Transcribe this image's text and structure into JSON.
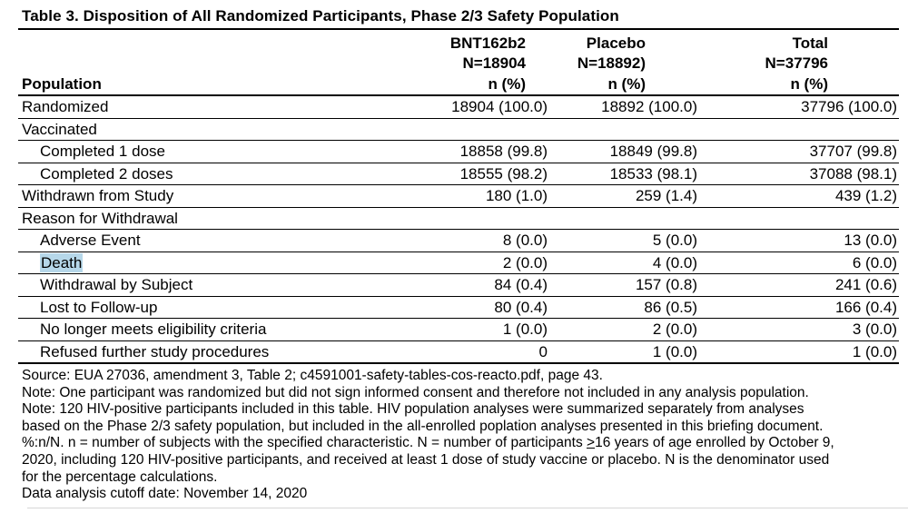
{
  "title": "Table 3. Disposition of All Randomized Participants, Phase 2/3 Safety Population",
  "highlight_color": "#b6d7e9",
  "table": {
    "row_header": "Population",
    "columns": [
      {
        "name": "BNT162b2",
        "n": "N=18904",
        "stat": "n (%)"
      },
      {
        "name": "Placebo",
        "n": "N=18892)",
        "stat": "n (%)"
      },
      {
        "name": "Total",
        "n": "N=37796",
        "stat": "n (%)"
      }
    ],
    "rows": [
      {
        "label": "Randomized",
        "indent": false,
        "highlighted": false,
        "values": [
          "18904 (100.0)",
          "18892 (100.0)",
          "37796 (100.0)"
        ]
      },
      {
        "label": "Vaccinated",
        "indent": false,
        "highlighted": false,
        "values": [
          "",
          "",
          ""
        ]
      },
      {
        "label": "Completed 1 dose",
        "indent": true,
        "highlighted": false,
        "values": [
          "18858 (99.8)",
          "18849 (99.8)",
          "37707 (99.8)"
        ]
      },
      {
        "label": "Completed 2 doses",
        "indent": true,
        "highlighted": false,
        "values": [
          "18555 (98.2)",
          "18533 (98.1)",
          "37088 (98.1)"
        ]
      },
      {
        "label": "Withdrawn from Study",
        "indent": false,
        "highlighted": false,
        "values": [
          "180 (1.0)",
          "259 (1.4)",
          "439 (1.2)"
        ]
      },
      {
        "label": "Reason for Withdrawal",
        "indent": false,
        "highlighted": false,
        "values": [
          "",
          "",
          ""
        ]
      },
      {
        "label": "Adverse Event",
        "indent": true,
        "highlighted": false,
        "values": [
          "8 (0.0)",
          "5 (0.0)",
          "13 (0.0)"
        ]
      },
      {
        "label": "Death",
        "indent": true,
        "highlighted": true,
        "values": [
          "2 (0.0)",
          "4 (0.0)",
          "6 (0.0)"
        ]
      },
      {
        "label": "Withdrawal by Subject",
        "indent": true,
        "highlighted": false,
        "values": [
          "84 (0.4)",
          "157 (0.8)",
          "241 (0.6)"
        ]
      },
      {
        "label": "Lost to Follow-up",
        "indent": true,
        "highlighted": false,
        "values": [
          "80 (0.4)",
          "86 (0.5)",
          "166 (0.4)"
        ]
      },
      {
        "label": "No longer meets eligibility criteria",
        "indent": true,
        "highlighted": false,
        "values": [
          "1 (0.0)",
          "2 (0.0)",
          "3 (0.0)"
        ]
      },
      {
        "label": "Refused further study procedures",
        "indent": true,
        "highlighted": false,
        "values": [
          "0",
          "1 (0.0)",
          "1 (0.0)"
        ]
      }
    ]
  },
  "footnotes": {
    "lines": [
      "Source: EUA 27036, amendment 3, Table 2; c4591001-safety-tables-cos-reacto.pdf, page 43.",
      "Note: One participant was randomized but did not sign informed consent and therefore not included in any analysis population.",
      "Note: 120 HIV-positive participants included in this table. HIV population analyses were summarized separately from analyses",
      "based on the Phase 2/3 safety population, but included in the all-enrolled poplation analyses presented in this briefing document.",
      {
        "pre": "%:n/N. n = number of subjects with the specified characteristic. N = number of participants ",
        "symbol": ">",
        "post": "16 years of age enrolled by October 9,"
      },
      "2020, including 120 HIV-positive participants, and received at least 1 dose of study vaccine or placebo. N is the denominator used",
      "for the percentage calculations.",
      "Data analysis cutoff date: November 14, 2020"
    ]
  }
}
